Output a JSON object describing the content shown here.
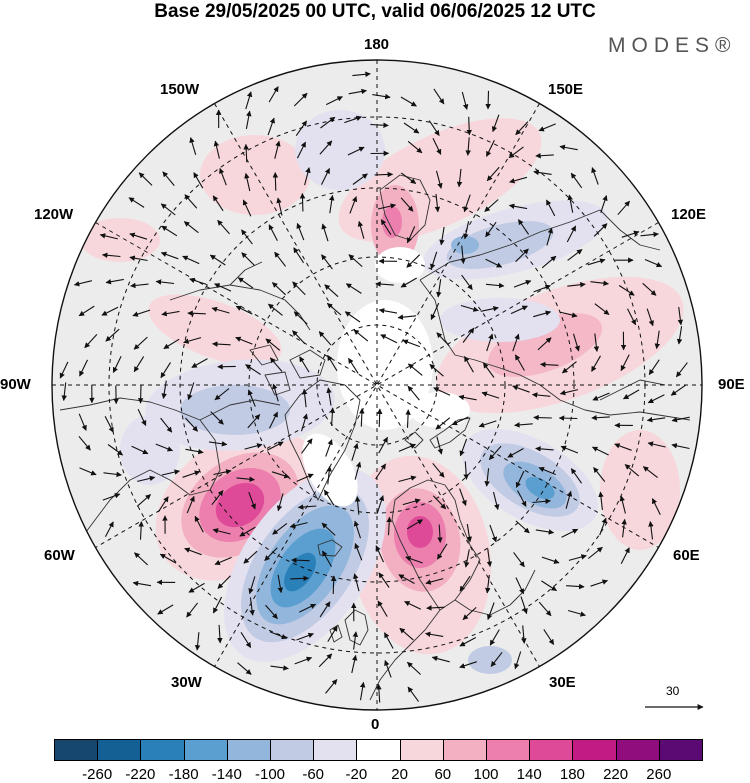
{
  "header": {
    "title": "Base 29/05/2025 00 UTC, valid 06/06/2025 12 UTC",
    "brand": "MODES®"
  },
  "map": {
    "projection": "north-polar-stereographic",
    "longitude_labels": {
      "lon_180": "180",
      "lon_150w": "150W",
      "lon_150e": "150E",
      "lon_120w": "120W",
      "lon_120e": "120E",
      "lon_90w": "90W",
      "lon_90e": "90E",
      "lon_60w": "60W",
      "lon_60e": "60E",
      "lon_30w": "30W",
      "lon_30e": "30E",
      "lon_0": "0"
    },
    "grid": "dashed",
    "vector_reference": {
      "value": "30"
    },
    "anomaly_features": [
      {
        "name": "positive-north-atlantic",
        "sign": "positive",
        "peak": 220
      },
      {
        "name": "negative-west-europe",
        "sign": "negative",
        "peak": -180
      },
      {
        "name": "positive-scandinavia",
        "sign": "positive",
        "peak": 180
      },
      {
        "name": "negative-west-siberia",
        "sign": "negative",
        "peak": -140
      },
      {
        "name": "positive-central-siberia",
        "sign": "positive",
        "peak": 100
      },
      {
        "name": "negative-east-siberia",
        "sign": "negative",
        "peak": -100
      },
      {
        "name": "positive-pacific",
        "sign": "positive",
        "peak": 100
      },
      {
        "name": "negative-canada",
        "sign": "negative",
        "peak": -100
      }
    ]
  },
  "colorbar": {
    "ticks": [
      "-260",
      "-220",
      "-180",
      "-140",
      "-100",
      "-60",
      "-20",
      "20",
      "60",
      "100",
      "140",
      "180",
      "220",
      "260"
    ],
    "colors": [
      "#16476e",
      "#145f94",
      "#2a80b9",
      "#5a9fd0",
      "#93b6dc",
      "#c1cbe4",
      "#e3e1f0",
      "#ffffff",
      "#f8d7dc",
      "#f2b0c2",
      "#ec7fad",
      "#df4a98",
      "#c21c84",
      "#8f0d7c",
      "#5b0a73"
    ]
  }
}
